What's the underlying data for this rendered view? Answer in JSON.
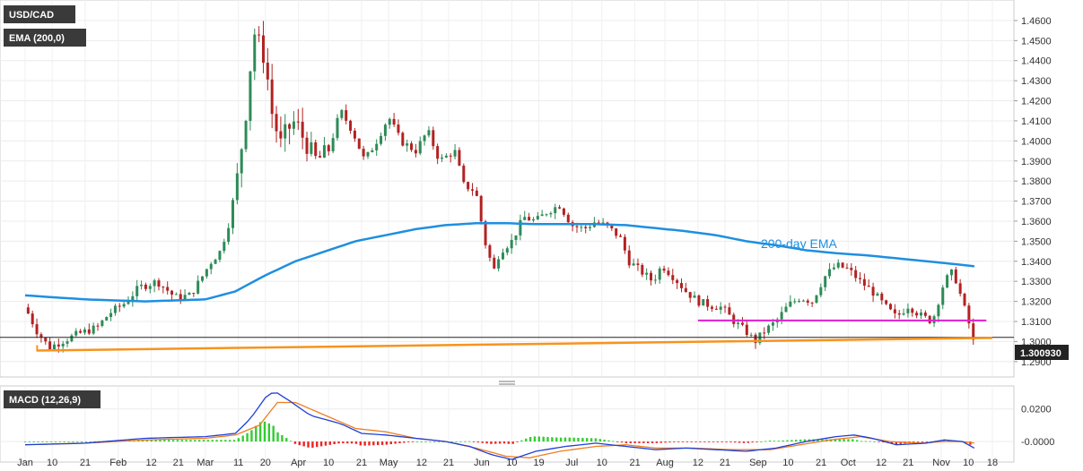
{
  "chart_data": [
    {
      "type": "candlestick",
      "symbol": "USD/CAD",
      "indicator_label": "EMA (200,0)",
      "current_price_label": "1.300930",
      "current_price": 1.30093,
      "annotation": "200-day EMA",
      "ylim": [
        1.285,
        1.468
      ],
      "yticks": [
        "1.4600",
        "1.4500",
        "1.4400",
        "1.4300",
        "1.4200",
        "1.4100",
        "1.4000",
        "1.3900",
        "1.3800",
        "1.3700",
        "1.3600",
        "1.3500",
        "1.3400",
        "1.3300",
        "1.3200",
        "1.3100",
        "1.3000",
        "1.2900"
      ],
      "ytick_values": [
        1.46,
        1.45,
        1.44,
        1.43,
        1.42,
        1.41,
        1.4,
        1.39,
        1.38,
        1.37,
        1.36,
        1.35,
        1.34,
        1.33,
        1.32,
        1.31,
        1.3,
        1.29
      ],
      "xticks": [
        "Jan",
        "10",
        "21",
        "Feb",
        "12",
        "21",
        "Mar",
        "11",
        "20",
        "Apr",
        "10",
        "21",
        "May",
        "12",
        "21",
        "Jun",
        "10",
        "19",
        "Jul",
        "10",
        "21",
        "Aug",
        "12",
        "21",
        "Sep",
        "10",
        "21",
        "Oct",
        "12",
        "21",
        "Nov",
        "10",
        "18"
      ],
      "xtick_days": [
        0,
        9,
        20,
        31,
        42,
        51,
        60,
        71,
        80,
        91,
        101,
        112,
        121,
        132,
        141,
        152,
        162,
        171,
        182,
        192,
        203,
        213,
        224,
        233,
        244,
        254,
        265,
        274,
        285,
        294,
        305,
        314,
        322
      ],
      "close_keypoints": [
        [
          0,
          1.317
        ],
        [
          4,
          1.305
        ],
        [
          8,
          1.297
        ],
        [
          12,
          1.3
        ],
        [
          18,
          1.304
        ],
        [
          24,
          1.307
        ],
        [
          28,
          1.314
        ],
        [
          33,
          1.319
        ],
        [
          38,
          1.327
        ],
        [
          44,
          1.33
        ],
        [
          50,
          1.322
        ],
        [
          55,
          1.323
        ],
        [
          58,
          1.33
        ],
        [
          62,
          1.34
        ],
        [
          65,
          1.345
        ],
        [
          68,
          1.36
        ],
        [
          71,
          1.385
        ],
        [
          74,
          1.42
        ],
        [
          76,
          1.455
        ],
        [
          78,
          1.448
        ],
        [
          80,
          1.44
        ],
        [
          82,
          1.415
        ],
        [
          85,
          1.398
        ],
        [
          87,
          1.405
        ],
        [
          90,
          1.41
        ],
        [
          93,
          1.4
        ],
        [
          97,
          1.39
        ],
        [
          101,
          1.395
        ],
        [
          105,
          1.415
        ],
        [
          109,
          1.405
        ],
        [
          113,
          1.39
        ],
        [
          117,
          1.4
        ],
        [
          121,
          1.412
        ],
        [
          125,
          1.4
        ],
        [
          130,
          1.395
        ],
        [
          134,
          1.405
        ],
        [
          138,
          1.39
        ],
        [
          143,
          1.395
        ],
        [
          146,
          1.378
        ],
        [
          150,
          1.375
        ],
        [
          153,
          1.35
        ],
        [
          156,
          1.335
        ],
        [
          158,
          1.345
        ],
        [
          162,
          1.35
        ],
        [
          166,
          1.362
        ],
        [
          170,
          1.36
        ],
        [
          174,
          1.365
        ],
        [
          178,
          1.368
        ],
        [
          182,
          1.358
        ],
        [
          186,
          1.356
        ],
        [
          190,
          1.36
        ],
        [
          194,
          1.357
        ],
        [
          198,
          1.352
        ],
        [
          201,
          1.34
        ],
        [
          205,
          1.335
        ],
        [
          209,
          1.33
        ],
        [
          212,
          1.338
        ],
        [
          216,
          1.332
        ],
        [
          220,
          1.325
        ],
        [
          224,
          1.32
        ],
        [
          228,
          1.318
        ],
        [
          232,
          1.317
        ],
        [
          236,
          1.31
        ],
        [
          240,
          1.305
        ],
        [
          243,
          1.3
        ],
        [
          246,
          1.305
        ],
        [
          250,
          1.31
        ],
        [
          254,
          1.318
        ],
        [
          258,
          1.322
        ],
        [
          262,
          1.32
        ],
        [
          266,
          1.332
        ],
        [
          270,
          1.338
        ],
        [
          274,
          1.336
        ],
        [
          278,
          1.33
        ],
        [
          282,
          1.325
        ],
        [
          286,
          1.318
        ],
        [
          290,
          1.312
        ],
        [
          294,
          1.318
        ],
        [
          298,
          1.313
        ],
        [
          302,
          1.31
        ],
        [
          306,
          1.33
        ],
        [
          309,
          1.335
        ],
        [
          312,
          1.32
        ],
        [
          314,
          1.31
        ],
        [
          316,
          1.3
        ]
      ],
      "ema200_keypoints": [
        [
          0,
          1.323
        ],
        [
          20,
          1.321
        ],
        [
          40,
          1.32
        ],
        [
          60,
          1.321
        ],
        [
          70,
          1.325
        ],
        [
          80,
          1.333
        ],
        [
          90,
          1.34
        ],
        [
          100,
          1.345
        ],
        [
          110,
          1.35
        ],
        [
          120,
          1.353
        ],
        [
          130,
          1.356
        ],
        [
          140,
          1.358
        ],
        [
          150,
          1.359
        ],
        [
          160,
          1.359
        ],
        [
          170,
          1.3585
        ],
        [
          180,
          1.3585
        ],
        [
          190,
          1.3585
        ],
        [
          200,
          1.358
        ],
        [
          210,
          1.3565
        ],
        [
          220,
          1.355
        ],
        [
          230,
          1.353
        ],
        [
          240,
          1.35
        ],
        [
          250,
          1.348
        ],
        [
          260,
          1.3455
        ],
        [
          270,
          1.344
        ],
        [
          280,
          1.343
        ],
        [
          290,
          1.3415
        ],
        [
          300,
          1.34
        ],
        [
          310,
          1.3385
        ],
        [
          316,
          1.3375
        ]
      ],
      "resistance_line": {
        "day_start": 224,
        "day_end": 320,
        "value": 1.3105
      },
      "support_line": {
        "day_start": 4,
        "day_end": 322,
        "value_start": 1.2955,
        "value_end": 1.3018
      },
      "price_line": 1.3021
    },
    {
      "type": "macd",
      "label": "MACD (12,26,9)",
      "ylim": [
        -0.0115,
        0.0325
      ],
      "yticks": [
        "0.0200",
        "-0.0000"
      ],
      "ytick_values": [
        0.02,
        0.0
      ],
      "macd_keypoints": [
        [
          0,
          -0.002
        ],
        [
          20,
          -0.001
        ],
        [
          40,
          0.002
        ],
        [
          60,
          0.003
        ],
        [
          70,
          0.005
        ],
        [
          75,
          0.014
        ],
        [
          80,
          0.027
        ],
        [
          83,
          0.031
        ],
        [
          88,
          0.025
        ],
        [
          95,
          0.016
        ],
        [
          105,
          0.011
        ],
        [
          112,
          0.005
        ],
        [
          120,
          0.004
        ],
        [
          130,
          0.002
        ],
        [
          140,
          0.0
        ],
        [
          148,
          -0.003
        ],
        [
          155,
          -0.008
        ],
        [
          162,
          -0.011
        ],
        [
          170,
          -0.006
        ],
        [
          180,
          -0.003
        ],
        [
          190,
          -0.001
        ],
        [
          200,
          -0.003
        ],
        [
          210,
          -0.005
        ],
        [
          220,
          -0.004
        ],
        [
          230,
          -0.005
        ],
        [
          240,
          -0.006
        ],
        [
          250,
          -0.004
        ],
        [
          260,
          0.0
        ],
        [
          270,
          0.003
        ],
        [
          276,
          0.004
        ],
        [
          282,
          0.002
        ],
        [
          290,
          -0.002
        ],
        [
          300,
          -0.001
        ],
        [
          306,
          0.001
        ],
        [
          312,
          0.0
        ],
        [
          316,
          -0.004
        ]
      ],
      "signal_keypoints": [
        [
          0,
          -0.002
        ],
        [
          20,
          -0.001
        ],
        [
          40,
          0.001
        ],
        [
          60,
          0.002
        ],
        [
          70,
          0.004
        ],
        [
          78,
          0.01
        ],
        [
          84,
          0.024
        ],
        [
          90,
          0.024
        ],
        [
          100,
          0.016
        ],
        [
          110,
          0.008
        ],
        [
          120,
          0.006
        ],
        [
          130,
          0.002
        ],
        [
          140,
          0.0
        ],
        [
          150,
          -0.004
        ],
        [
          160,
          -0.009
        ],
        [
          168,
          -0.01
        ],
        [
          178,
          -0.006
        ],
        [
          190,
          -0.003
        ],
        [
          200,
          -0.002
        ],
        [
          210,
          -0.004
        ],
        [
          222,
          -0.004
        ],
        [
          235,
          -0.005
        ],
        [
          248,
          -0.005
        ],
        [
          258,
          -0.002
        ],
        [
          268,
          0.001
        ],
        [
          278,
          0.003
        ],
        [
          288,
          0.0
        ],
        [
          298,
          -0.001
        ],
        [
          306,
          0.0
        ],
        [
          312,
          0.0
        ],
        [
          316,
          -0.001
        ]
      ]
    }
  ]
}
